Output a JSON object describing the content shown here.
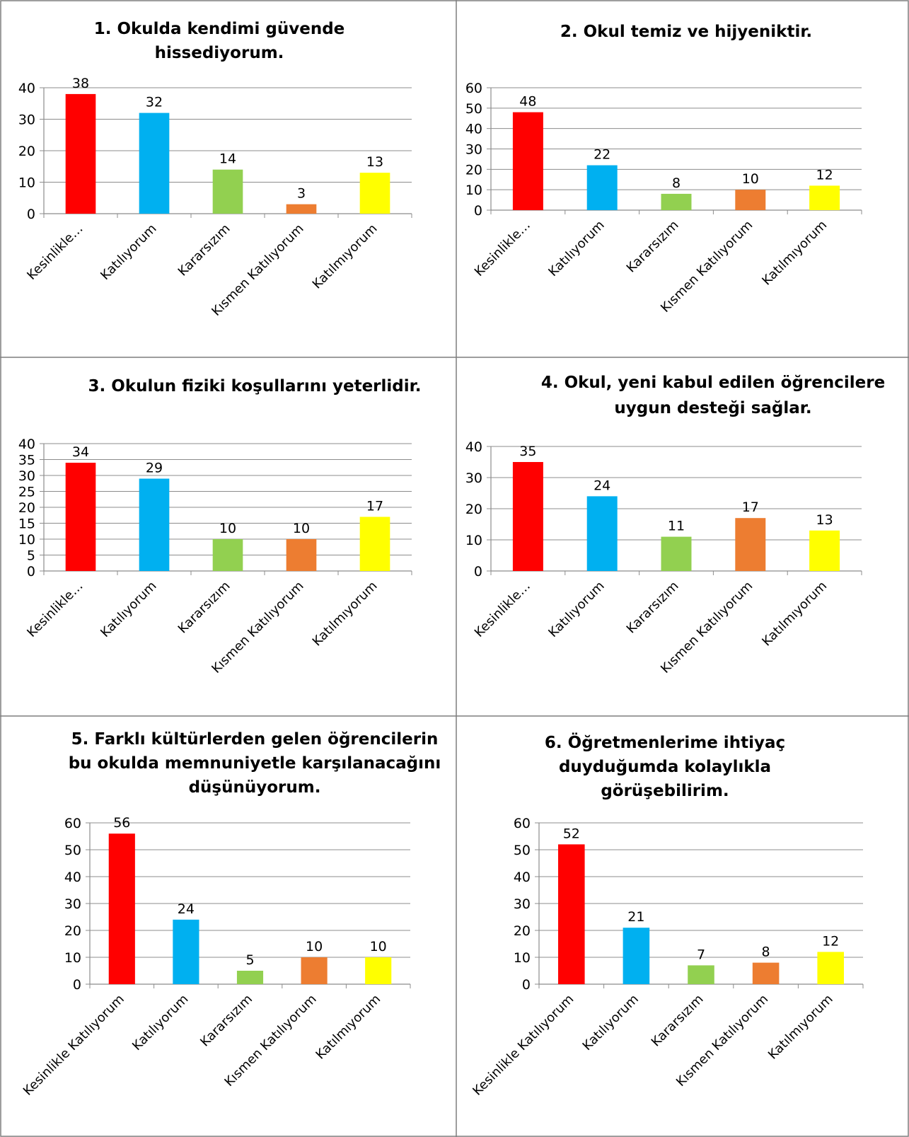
{
  "colors": [
    "#ff0000",
    "#00b0f0",
    "#92d050",
    "#ed7d31",
    "#ffff00"
  ],
  "chart_data": [
    {
      "type": "bar",
      "title": [
        "1. Okulda kendimi güvende",
        "hissediyorum."
      ],
      "categories": [
        "Kesinlikle…",
        "Katılıyorum",
        "Kararsızım",
        "Kısmen Katılıyorum",
        "Katılmıyorum"
      ],
      "values": [
        38,
        32,
        14,
        3,
        13
      ],
      "yticks": [
        0,
        10,
        20,
        30,
        40
      ],
      "ylim": [
        0,
        40
      ]
    },
    {
      "type": "bar",
      "title": [
        "2. Okul temiz ve hijyeniktir."
      ],
      "categories": [
        "Kesinlikle…",
        "Katılıyorum",
        "Kararsızım",
        "Kısmen Katılıyorum",
        "Katılmıyorum"
      ],
      "values": [
        48,
        22,
        8,
        10,
        12
      ],
      "yticks": [
        0,
        10,
        20,
        30,
        40,
        50,
        60
      ],
      "ylim": [
        0,
        60
      ]
    },
    {
      "type": "bar",
      "title": [
        "3. Okulun fiziki koşullarını yeterlidir."
      ],
      "categories": [
        "Kesinlikle…",
        "Katılıyorum",
        "Kararsızım",
        "Kısmen Katılıyorum",
        "Katılmıyorum"
      ],
      "values": [
        34,
        29,
        10,
        10,
        17
      ],
      "yticks": [
        0,
        5,
        10,
        15,
        20,
        25,
        30,
        35,
        40
      ],
      "ylim": [
        0,
        40
      ]
    },
    {
      "type": "bar",
      "title": [
        "4. Okul, yeni kabul edilen öğrencilere",
        "uygun desteği sağlar."
      ],
      "categories": [
        "Kesinlikle…",
        "Katılıyorum",
        "Kararsızım",
        "Kısmen Katılıyorum",
        "Katılmıyorum"
      ],
      "values": [
        35,
        24,
        11,
        17,
        13
      ],
      "yticks": [
        0,
        10,
        20,
        30,
        40
      ],
      "ylim": [
        0,
        40
      ]
    },
    {
      "type": "bar",
      "title": [
        "5. Farklı kültürlerden gelen öğrencilerin",
        "bu okulda memnuniyetle karşılanacağını",
        "düşünüyorum."
      ],
      "categories": [
        "Kesinlikle Katılıyorum",
        "Katılıyorum",
        "Kararsızım",
        "Kısmen Katılıyorum",
        "Katılmıyorum"
      ],
      "values": [
        56,
        24,
        5,
        10,
        10
      ],
      "yticks": [
        0,
        10,
        20,
        30,
        40,
        50,
        60
      ],
      "ylim": [
        0,
        60
      ]
    },
    {
      "type": "bar",
      "title": [
        "6. Öğretmenlerime ihtiyaç",
        "duyduğumda kolaylıkla",
        "görüşebilirim."
      ],
      "categories": [
        "Kesinlikle Katılıyorum",
        "Katılıyorum",
        "Kararsızım",
        "Kısmen Katılıyorum",
        "Katılmıyorum"
      ],
      "values": [
        52,
        21,
        7,
        8,
        12
      ],
      "yticks": [
        0,
        10,
        20,
        30,
        40,
        50,
        60
      ],
      "ylim": [
        0,
        60
      ]
    }
  ]
}
